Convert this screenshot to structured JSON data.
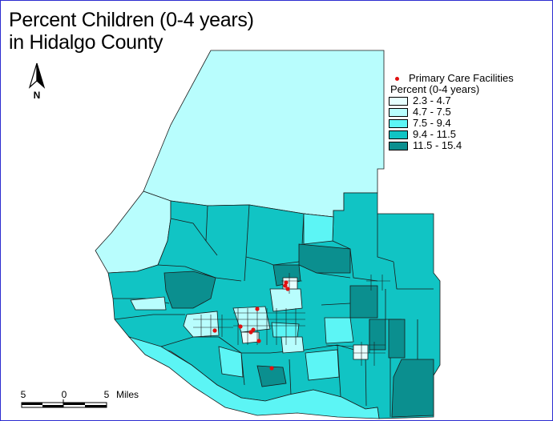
{
  "map": {
    "title_line1": "Percent Children (0-4 years)",
    "title_line2": "in Hidalgo County",
    "north_label": "N"
  },
  "legend": {
    "facilities_label": "Primary Care Facilities",
    "heading": "Percent (0-4 years)",
    "classes": [
      {
        "label": "2.3 - 4.7",
        "color": "#e6fefe"
      },
      {
        "label": "4.7 - 7.5",
        "color": "#b8fdfd"
      },
      {
        "label": "7.5 - 9.4",
        "color": "#5cf5f5"
      },
      {
        "label": "9.4 - 11.5",
        "color": "#11c4c4"
      },
      {
        "label": "11.5 - 15.4",
        "color": "#0b8f8f"
      }
    ],
    "facility_color": "#e01010"
  },
  "scale_bar": {
    "labels": [
      "5",
      "0",
      "5"
    ],
    "unit": "Miles"
  }
}
